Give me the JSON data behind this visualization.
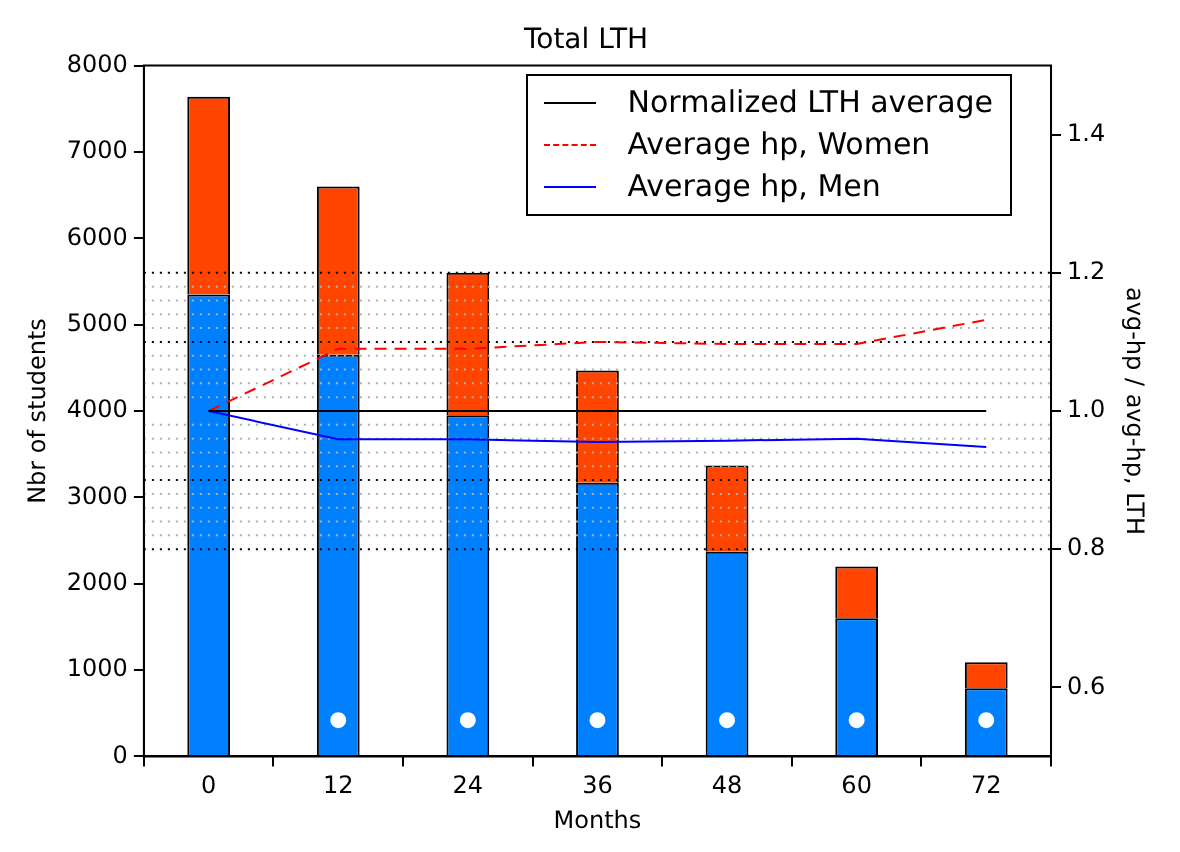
{
  "chart_data": {
    "type": "bar",
    "title": "Total LTH",
    "xlabel": "Months",
    "ylabel": "Nbr of students",
    "y2label": "avg-hp / avg-hp, LTH",
    "categories": [
      "0",
      "12",
      "24",
      "36",
      "48",
      "60",
      "72"
    ],
    "stacked": true,
    "series": [
      {
        "color": "#0080ff",
        "values": [
          5350,
          4650,
          3950,
          3170,
          2370,
          1600,
          790
        ]
      },
      {
        "color": "#ff4500",
        "values": [
          2290,
          1950,
          1650,
          1300,
          1000,
          600,
          300
        ]
      },
      {
        "type": "line",
        "name": "Normalized LTH average",
        "color": "#000000",
        "axis": "y2",
        "line_style": "solid",
        "values": [
          1,
          1,
          1,
          1,
          1,
          1,
          1
        ]
      },
      {
        "type": "line",
        "name": "Average hp, Women",
        "color": "#ff0000",
        "axis": "y2",
        "line_style": "dashed",
        "values": [
          1,
          1.09,
          1.09,
          1.1,
          1.097,
          1.097,
          1.132
        ]
      },
      {
        "type": "line",
        "name": "Average hp, Men",
        "color": "#0000ff",
        "axis": "y2",
        "line_style": "solid",
        "values": [
          1,
          0.959,
          0.959,
          0.955,
          0.957,
          0.96,
          0.948
        ]
      },
      {
        "type": "scatter",
        "color": "#ffffff",
        "marker": "circle",
        "values": [
          null,
          420,
          420,
          420,
          420,
          420,
          420
        ]
      }
    ],
    "ylim": [
      0,
      8000
    ],
    "yticks": [
      0,
      1000,
      2000,
      3000,
      4000,
      5000,
      6000,
      7000,
      8000
    ],
    "y2lim": [
      0.5,
      1.5
    ],
    "y2ticks": [
      0.6,
      0.8,
      {
        "value": 1,
        "label": "1.0"
      },
      1.2,
      1.4
    ],
    "ref_lines": [
      {
        "axis": "y2",
        "value": 0.8,
        "color": "#000000",
        "line_style": "dotted"
      },
      {
        "axis": "y2",
        "value": 0.9,
        "color": "#000000",
        "line_style": "dotted"
      },
      {
        "axis": "y2",
        "value": 1.1,
        "color": "#000000",
        "line_style": "dotted"
      },
      {
        "axis": "y2",
        "value": 1.2,
        "color": "#000000",
        "line_style": "dotted"
      },
      {
        "axis": "y2",
        "value": 0.82,
        "color": "#b0b0b0",
        "line_style": "dotted"
      },
      {
        "axis": "y2",
        "value": 0.84,
        "color": "#b0b0b0",
        "line_style": "dotted"
      },
      {
        "axis": "y2",
        "value": 0.86,
        "color": "#b0b0b0",
        "line_style": "dotted"
      },
      {
        "axis": "y2",
        "value": 0.88,
        "color": "#b0b0b0",
        "line_style": "dotted"
      },
      {
        "axis": "y2",
        "value": 0.92,
        "color": "#b0b0b0",
        "line_style": "dotted"
      },
      {
        "axis": "y2",
        "value": 0.94,
        "color": "#b0b0b0",
        "line_style": "dotted"
      },
      {
        "axis": "y2",
        "value": 0.96,
        "color": "#b0b0b0",
        "line_style": "dotted"
      },
      {
        "axis": "y2",
        "value": 0.98,
        "color": "#b0b0b0",
        "line_style": "dotted"
      },
      {
        "axis": "y2",
        "value": 1.02,
        "color": "#b0b0b0",
        "line_style": "dotted"
      },
      {
        "axis": "y2",
        "value": 1.04,
        "color": "#b0b0b0",
        "line_style": "dotted"
      },
      {
        "axis": "y2",
        "value": 1.06,
        "color": "#b0b0b0",
        "line_style": "dotted"
      },
      {
        "axis": "y2",
        "value": 1.08,
        "color": "#b0b0b0",
        "line_style": "dotted"
      },
      {
        "axis": "y2",
        "value": 1.12,
        "color": "#b0b0b0",
        "line_style": "dotted"
      },
      {
        "axis": "y2",
        "value": 1.14,
        "color": "#b0b0b0",
        "line_style": "dotted"
      },
      {
        "axis": "y2",
        "value": 1.16,
        "color": "#b0b0b0",
        "line_style": "dotted"
      },
      {
        "axis": "y2",
        "value": 1.18,
        "color": "#b0b0b0",
        "line_style": "dotted"
      }
    ],
    "grid": false,
    "legend": "top right"
  }
}
